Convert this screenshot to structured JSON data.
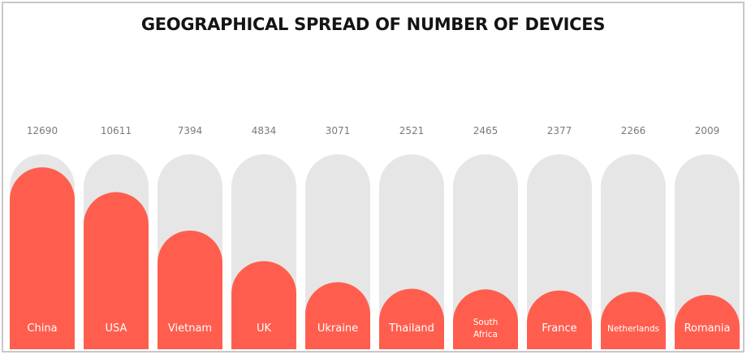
{
  "chart_data": {
    "type": "bar",
    "title": "GEOGRAPHICAL SPREAD OF NUMBER OF DEVICES",
    "categories": [
      "China",
      "USA",
      "Vietnam",
      "UK",
      "Ukraine",
      "Thailand",
      "South Africa",
      "France",
      "Netherlands",
      "Romania"
    ],
    "category_lines": [
      [
        "China"
      ],
      [
        "USA"
      ],
      [
        "Vietnam"
      ],
      [
        "UK"
      ],
      [
        "Ukraine"
      ],
      [
        "Thailand"
      ],
      [
        "South",
        "Africa"
      ],
      [
        "France"
      ],
      [
        "Netherlands"
      ],
      [
        "Romania"
      ]
    ],
    "values": [
      12690,
      10611,
      7394,
      4834,
      3071,
      2521,
      2465,
      2377,
      2266,
      2009
    ],
    "value_labels": [
      "12690",
      "10611",
      "7394",
      "4834",
      "3071",
      "2521",
      "2465",
      "2377",
      "2266",
      "2009"
    ],
    "xlabel": "",
    "ylabel": "",
    "grid": false,
    "legend": "none",
    "colors": {
      "bar": "#ff5e4e",
      "track": "#e6e6e6",
      "value_text": "#7a7a7a",
      "label_text": "#ffffff",
      "title": "#141414",
      "border": "#c8c8c8"
    }
  }
}
